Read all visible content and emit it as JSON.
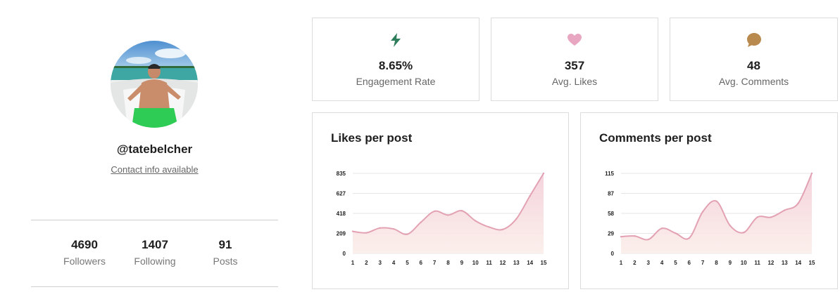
{
  "profile": {
    "handle": "@tatebelcher",
    "contact": "Contact info available",
    "stats": [
      {
        "value": "4690",
        "label": "Followers"
      },
      {
        "value": "1407",
        "label": "Following"
      },
      {
        "value": "91",
        "label": "Posts"
      }
    ]
  },
  "metrics": [
    {
      "icon": "lightning-icon",
      "color": "#2e7d5b",
      "value": "8.65%",
      "label": "Engagement Rate"
    },
    {
      "icon": "heart-icon",
      "color": "#e8a6c0",
      "value": "357",
      "label": "Avg. Likes"
    },
    {
      "icon": "comment-icon",
      "color": "#b98a4e",
      "value": "48",
      "label": "Avg. Comments"
    }
  ],
  "colors": {
    "line": "#e3a2b3",
    "fill_top": "#f3cfd9",
    "fill_bottom": "#fbeee9",
    "grid": "#e6e6e6"
  },
  "chart_data": [
    {
      "type": "area",
      "title": "Likes per post",
      "x": [
        1,
        2,
        3,
        4,
        5,
        6,
        7,
        8,
        9,
        10,
        11,
        12,
        13,
        14,
        15
      ],
      "series": [
        {
          "values": [
            230,
            215,
            265,
            255,
            200,
            325,
            440,
            400,
            445,
            340,
            275,
            250,
            360,
            600,
            835
          ]
        }
      ],
      "yticks": [
        "0",
        "209",
        "418",
        "627",
        "835"
      ],
      "ylim": [
        0,
        835
      ],
      "grid": true
    },
    {
      "type": "area",
      "title": "Comments per post",
      "x": [
        1,
        2,
        3,
        4,
        5,
        6,
        7,
        8,
        9,
        10,
        11,
        12,
        13,
        14,
        15
      ],
      "series": [
        {
          "values": [
            24,
            25,
            20,
            36,
            29,
            22,
            60,
            75,
            40,
            30,
            52,
            52,
            62,
            72,
            115
          ]
        }
      ],
      "yticks": [
        "0",
        "29",
        "58",
        "87",
        "115"
      ],
      "ylim": [
        0,
        115
      ],
      "grid": true
    }
  ]
}
